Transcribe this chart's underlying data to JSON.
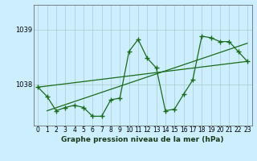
{
  "xlabel": "Graphe pression niveau de la mer (hPa)",
  "bg_color": "#cceeff",
  "plot_bg_color": "#cceeff",
  "grid_color": "#aacccc",
  "line_color": "#1a6b1a",
  "marker_color": "#1a6b1a",
  "yticks": [
    1038,
    1039
  ],
  "xticks": [
    0,
    1,
    2,
    3,
    4,
    5,
    6,
    7,
    8,
    9,
    10,
    11,
    12,
    13,
    14,
    15,
    16,
    17,
    18,
    19,
    20,
    21,
    22,
    23
  ],
  "ylim": [
    1037.25,
    1039.45
  ],
  "xlim": [
    -0.5,
    23.5
  ],
  "main_data": [
    [
      0,
      1037.95
    ],
    [
      1,
      1037.78
    ],
    [
      2,
      1037.52
    ],
    [
      3,
      1037.58
    ],
    [
      4,
      1037.62
    ],
    [
      5,
      1037.58
    ],
    [
      6,
      1037.42
    ],
    [
      7,
      1037.42
    ],
    [
      8,
      1037.72
    ],
    [
      9,
      1037.75
    ],
    [
      10,
      1038.6
    ],
    [
      11,
      1038.82
    ],
    [
      12,
      1038.48
    ],
    [
      13,
      1038.3
    ],
    [
      14,
      1037.52
    ],
    [
      15,
      1037.55
    ],
    [
      16,
      1037.82
    ],
    [
      17,
      1038.08
    ],
    [
      18,
      1038.88
    ],
    [
      19,
      1038.85
    ],
    [
      20,
      1038.78
    ],
    [
      21,
      1038.78
    ],
    [
      22,
      1038.6
    ],
    [
      23,
      1038.42
    ]
  ],
  "trend_line1": [
    [
      0,
      1037.95
    ],
    [
      23,
      1038.42
    ]
  ],
  "trend_line2": [
    [
      1,
      1037.52
    ],
    [
      23,
      1038.75
    ]
  ]
}
